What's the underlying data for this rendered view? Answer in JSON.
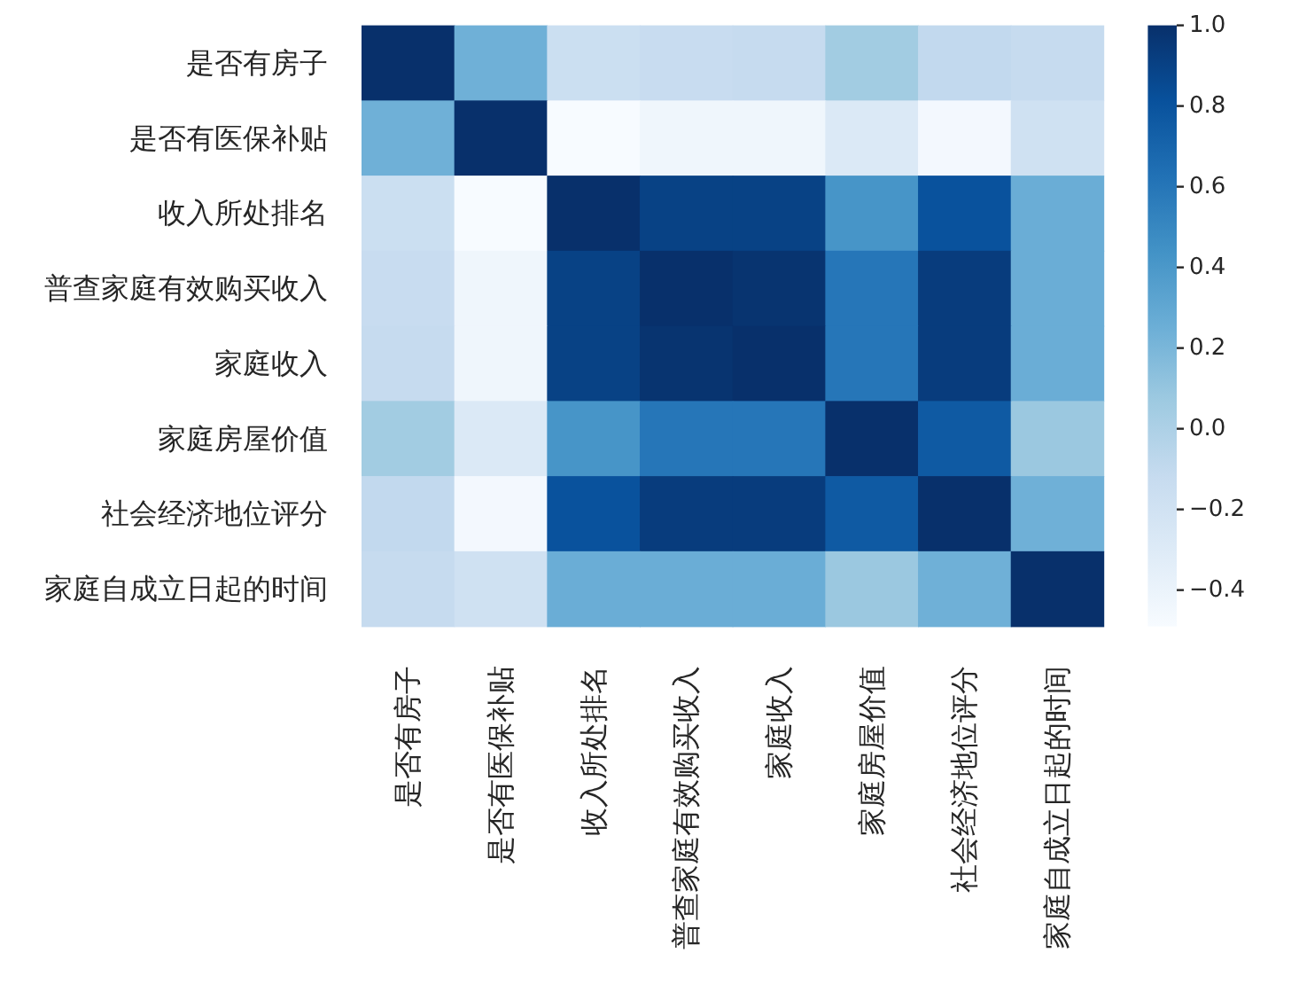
{
  "chart_data": {
    "type": "heatmap",
    "categories": [
      "是否有房子",
      "是否有医保补贴",
      "收入所处排名",
      "普查家庭有效购买收入",
      "家庭收入",
      "家庭房屋价值",
      "社会经济地位评分",
      "家庭自成立日起的时间"
    ],
    "y_categories": [
      "是否有房子",
      "是否有医保补贴",
      "收入所处排名",
      "普查家庭有效购买收入",
      "家庭收入",
      "家庭房屋价值",
      "社会经济地位评分",
      "家庭自成立日起的时间"
    ],
    "cells": [
      [
        1,
        0.24,
        -0.16,
        -0.13,
        -0.12,
        0.05,
        -0.1,
        -0.12
      ],
      [
        0.24,
        1,
        -0.49,
        -0.43,
        -0.43,
        -0.28,
        -0.46,
        -0.19
      ],
      [
        -0.16,
        -0.49,
        1,
        0.9,
        0.9,
        0.42,
        0.81,
        0.26
      ],
      [
        -0.13,
        -0.43,
        0.9,
        1,
        0.98,
        0.6,
        0.93,
        0.26
      ],
      [
        -0.12,
        -0.43,
        0.9,
        0.98,
        1,
        0.6,
        0.93,
        0.26
      ],
      [
        0.05,
        -0.28,
        0.42,
        0.6,
        0.6,
        1,
        0.76,
        0.08
      ],
      [
        -0.1,
        -0.46,
        0.81,
        0.93,
        0.93,
        0.76,
        1,
        0.24
      ],
      [
        -0.12,
        -0.19,
        0.26,
        0.26,
        0.26,
        0.08,
        0.24,
        1
      ]
    ],
    "clim": [
      -0.49,
      1
    ],
    "cticks": [
      {
        "value": 1,
        "label": "1.0"
      },
      {
        "value": 0.8,
        "label": "0.8"
      },
      {
        "value": 0.6,
        "label": "0.6"
      },
      {
        "value": 0.4,
        "label": "0.4"
      },
      {
        "value": 0.2,
        "label": "0.2"
      },
      {
        "value": 0,
        "label": "0.0"
      },
      {
        "value": -0.2,
        "label": "−0.2"
      },
      {
        "value": -0.4,
        "label": "−0.4"
      }
    ]
  }
}
